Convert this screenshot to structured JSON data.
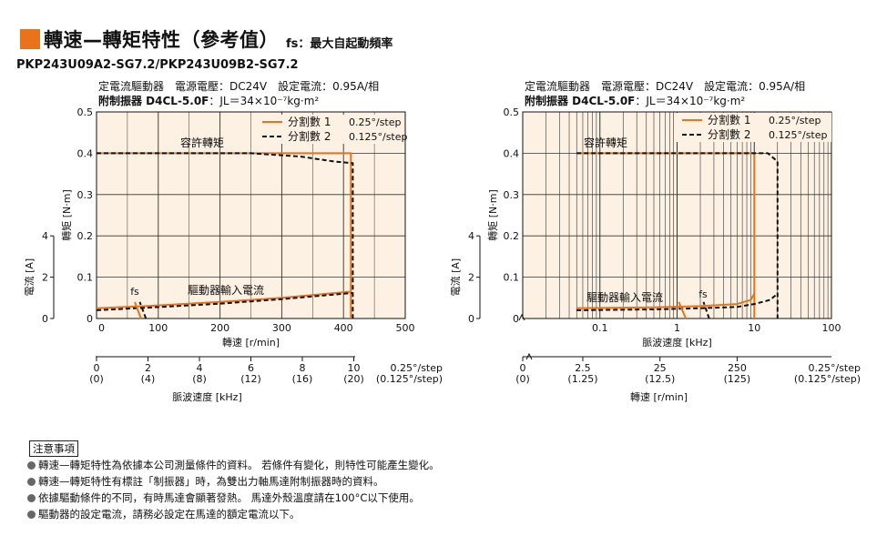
{
  "header": {
    "title": "轉速—轉矩特性（參考值）",
    "subtitle": "fs：最大自起動頻率",
    "model": "PKP243U09A2-SG7.2/PKP243U09B2-SG7.2"
  },
  "conditions": {
    "line1": "定電流驅動器　電源電壓：DC24V　設定電流：0.95A/相",
    "line2_bold": "附制振器 D4CL-5.0F",
    "line2_rest": "：JL＝34×10⁻⁷kg·m²"
  },
  "colors": {
    "accent": "#e8731a",
    "plot_bg": "#fdf1e3",
    "black": "#111111"
  },
  "legend": {
    "series1_label": "分割數 1",
    "series1_step": "0.25°/step",
    "series2_label": "分割數 2",
    "series2_step": "0.125°/step"
  },
  "chart_data": [
    {
      "type": "line",
      "ylabel": "轉矩 [N·m]",
      "y2label": "電流 [A]",
      "xlabel": "轉速 [r/min]",
      "xlim": [
        0,
        500
      ],
      "ylim": [
        0,
        0.5
      ],
      "x_ticks": [
        "0",
        "100",
        "200",
        "300",
        "400",
        "500"
      ],
      "y_ticks": [
        "0",
        "0.1",
        "0.2",
        "0.3",
        "0.4",
        "0.5"
      ],
      "current_ticks": [
        "0",
        "2",
        "4"
      ],
      "current_ticks_at_torque": [
        0,
        0.1,
        0.2
      ],
      "grid": true,
      "legend_position": "top-right",
      "annotations": {
        "torque_label": "容許轉矩",
        "current_label": "驅動器輸入電流",
        "fs_label": "fs"
      },
      "secondary_axis": {
        "label": "脈波速度 [kHz]",
        "ticks": [
          "0",
          "2",
          "4",
          "6",
          "8",
          "10"
        ],
        "ticks_alt": [
          "(0)",
          "(4)",
          "(8)",
          "(12)",
          "(16)",
          "(20)"
        ],
        "tick_speed": [
          0,
          83.3,
          166.7,
          250,
          333.3,
          416.7
        ],
        "unit": "0.25°/step",
        "unit_alt": "(0.125°/step)"
      },
      "series": [
        {
          "name": "分割數 1",
          "kind": "torque",
          "x": [
            0,
            300,
            380,
            412,
            412
          ],
          "y": [
            0.4,
            0.4,
            0.4,
            0.4,
            0
          ]
        },
        {
          "name": "分割數 2",
          "kind": "torque",
          "x": [
            0,
            250,
            330,
            385,
            415,
            415
          ],
          "y": [
            0.4,
            0.4,
            0.392,
            0.38,
            0.376,
            0
          ]
        },
        {
          "name": "分割數 1",
          "kind": "current",
          "x": [
            0,
            80,
            200,
            300,
            412
          ],
          "y": [
            0.025,
            0.03,
            0.04,
            0.05,
            0.065
          ]
        },
        {
          "name": "分割數 2",
          "kind": "current",
          "x": [
            0,
            80,
            200,
            300,
            415
          ],
          "y": [
            0.02,
            0.026,
            0.036,
            0.047,
            0.062
          ]
        },
        {
          "name": "分割數 1",
          "kind": "fs",
          "x": [
            72,
            62
          ],
          "y": [
            0,
            0.04
          ]
        },
        {
          "name": "分割數 2",
          "kind": "fs",
          "x": [
            80,
            70
          ],
          "y": [
            0,
            0.04
          ]
        }
      ]
    },
    {
      "type": "line",
      "ylabel": "轉矩 [N·m]",
      "y2label": "電流 [A]",
      "xlabel": "脈波速度 [kHz]",
      "x_scale": "log",
      "xlim": [
        0.01,
        100
      ],
      "ylim": [
        0,
        0.5
      ],
      "x_ticks": [
        "0.1",
        "1",
        "10",
        "100"
      ],
      "y_ticks": [
        "0",
        "0.1",
        "0.2",
        "0.3",
        "0.4",
        "0.5"
      ],
      "current_ticks": [
        "0",
        "2",
        "4"
      ],
      "current_ticks_at_torque": [
        0,
        0.1,
        0.2
      ],
      "grid": true,
      "legend_position": "top-right",
      "annotations": {
        "torque_label": "容許轉矩",
        "current_label": "驅動器輸入電流",
        "fs_label": "fs"
      },
      "secondary_axis": {
        "label": "轉速 [r/min]",
        "ticks": [
          "0",
          "2.5",
          "25",
          "250"
        ],
        "ticks_alt": [
          "(0)",
          "(1.25)",
          "(12.5)",
          "(125)"
        ],
        "tick_khz": [
          0.01,
          0.06,
          0.6,
          6
        ],
        "unit": "0.25°/step",
        "unit_alt": "(0.125°/step)"
      },
      "series": [
        {
          "name": "分割數 1",
          "kind": "torque",
          "x": [
            0.05,
            5,
            10,
            10
          ],
          "y": [
            0.4,
            0.4,
            0.4,
            0
          ]
        },
        {
          "name": "分割數 2",
          "kind": "torque",
          "x": [
            0.05,
            8,
            15,
            20,
            20
          ],
          "y": [
            0.4,
            0.4,
            0.4,
            0.38,
            0
          ]
        },
        {
          "name": "分割數 1",
          "kind": "current",
          "x": [
            0.05,
            0.5,
            2,
            6,
            9,
            10
          ],
          "y": [
            0.025,
            0.027,
            0.03,
            0.035,
            0.045,
            0.06
          ]
        },
        {
          "name": "分割數 2",
          "kind": "current",
          "x": [
            0.05,
            0.5,
            2,
            6,
            10,
            16,
            20
          ],
          "y": [
            0.02,
            0.022,
            0.025,
            0.028,
            0.035,
            0.045,
            0.06
          ]
        },
        {
          "name": "分割數 1",
          "kind": "fs",
          "x": [
            1.3,
            1.05
          ],
          "y": [
            0,
            0.04
          ]
        },
        {
          "name": "分割數 2",
          "kind": "fs",
          "x": [
            2.6,
            2.2
          ],
          "y": [
            0,
            0.04
          ]
        }
      ]
    }
  ],
  "notes": {
    "title": "注意事項",
    "items": [
      "轉速—轉矩特性為依據本公司測量條件的資料。 若條件有變化，則特性可能產生變化。",
      "轉速—轉矩特性有標註「制振器」時，為雙出力軸馬達附制振器時的資料。",
      "依據驅動條件的不同，有時馬達會顯著發熱。 馬達外殼溫度請在100°C以下使用。",
      "驅動器的設定電流，請務必設定在馬達的額定電流以下。"
    ]
  }
}
